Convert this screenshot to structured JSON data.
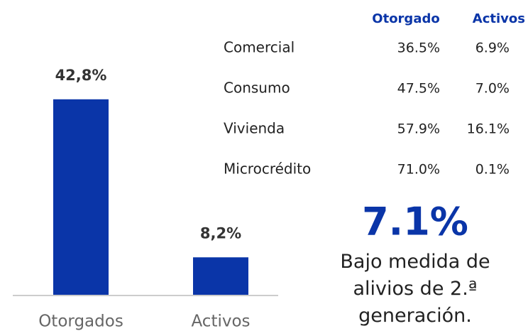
{
  "chart_data": {
    "type": "bar",
    "categories": [
      "Otorgados",
      "Activos"
    ],
    "values": [
      42.8,
      8.2
    ],
    "value_labels": [
      "42,8%",
      "8,2%"
    ],
    "color": "#0a35a8"
  },
  "table": {
    "header": [
      "Otorgado",
      "Activos"
    ],
    "rows": [
      [
        "Comercial",
        "36.5%",
        "6.9%"
      ],
      [
        "Consumo",
        "47.5%",
        "7.0%"
      ],
      [
        "Vivienda",
        "57.9%",
        "16.1%"
      ],
      [
        "Microcrédito",
        "71.0%",
        "0.1%"
      ]
    ]
  },
  "highlight": {
    "value": "7.1%",
    "text": "Bajo medida de alivios de 2.ª generación."
  }
}
